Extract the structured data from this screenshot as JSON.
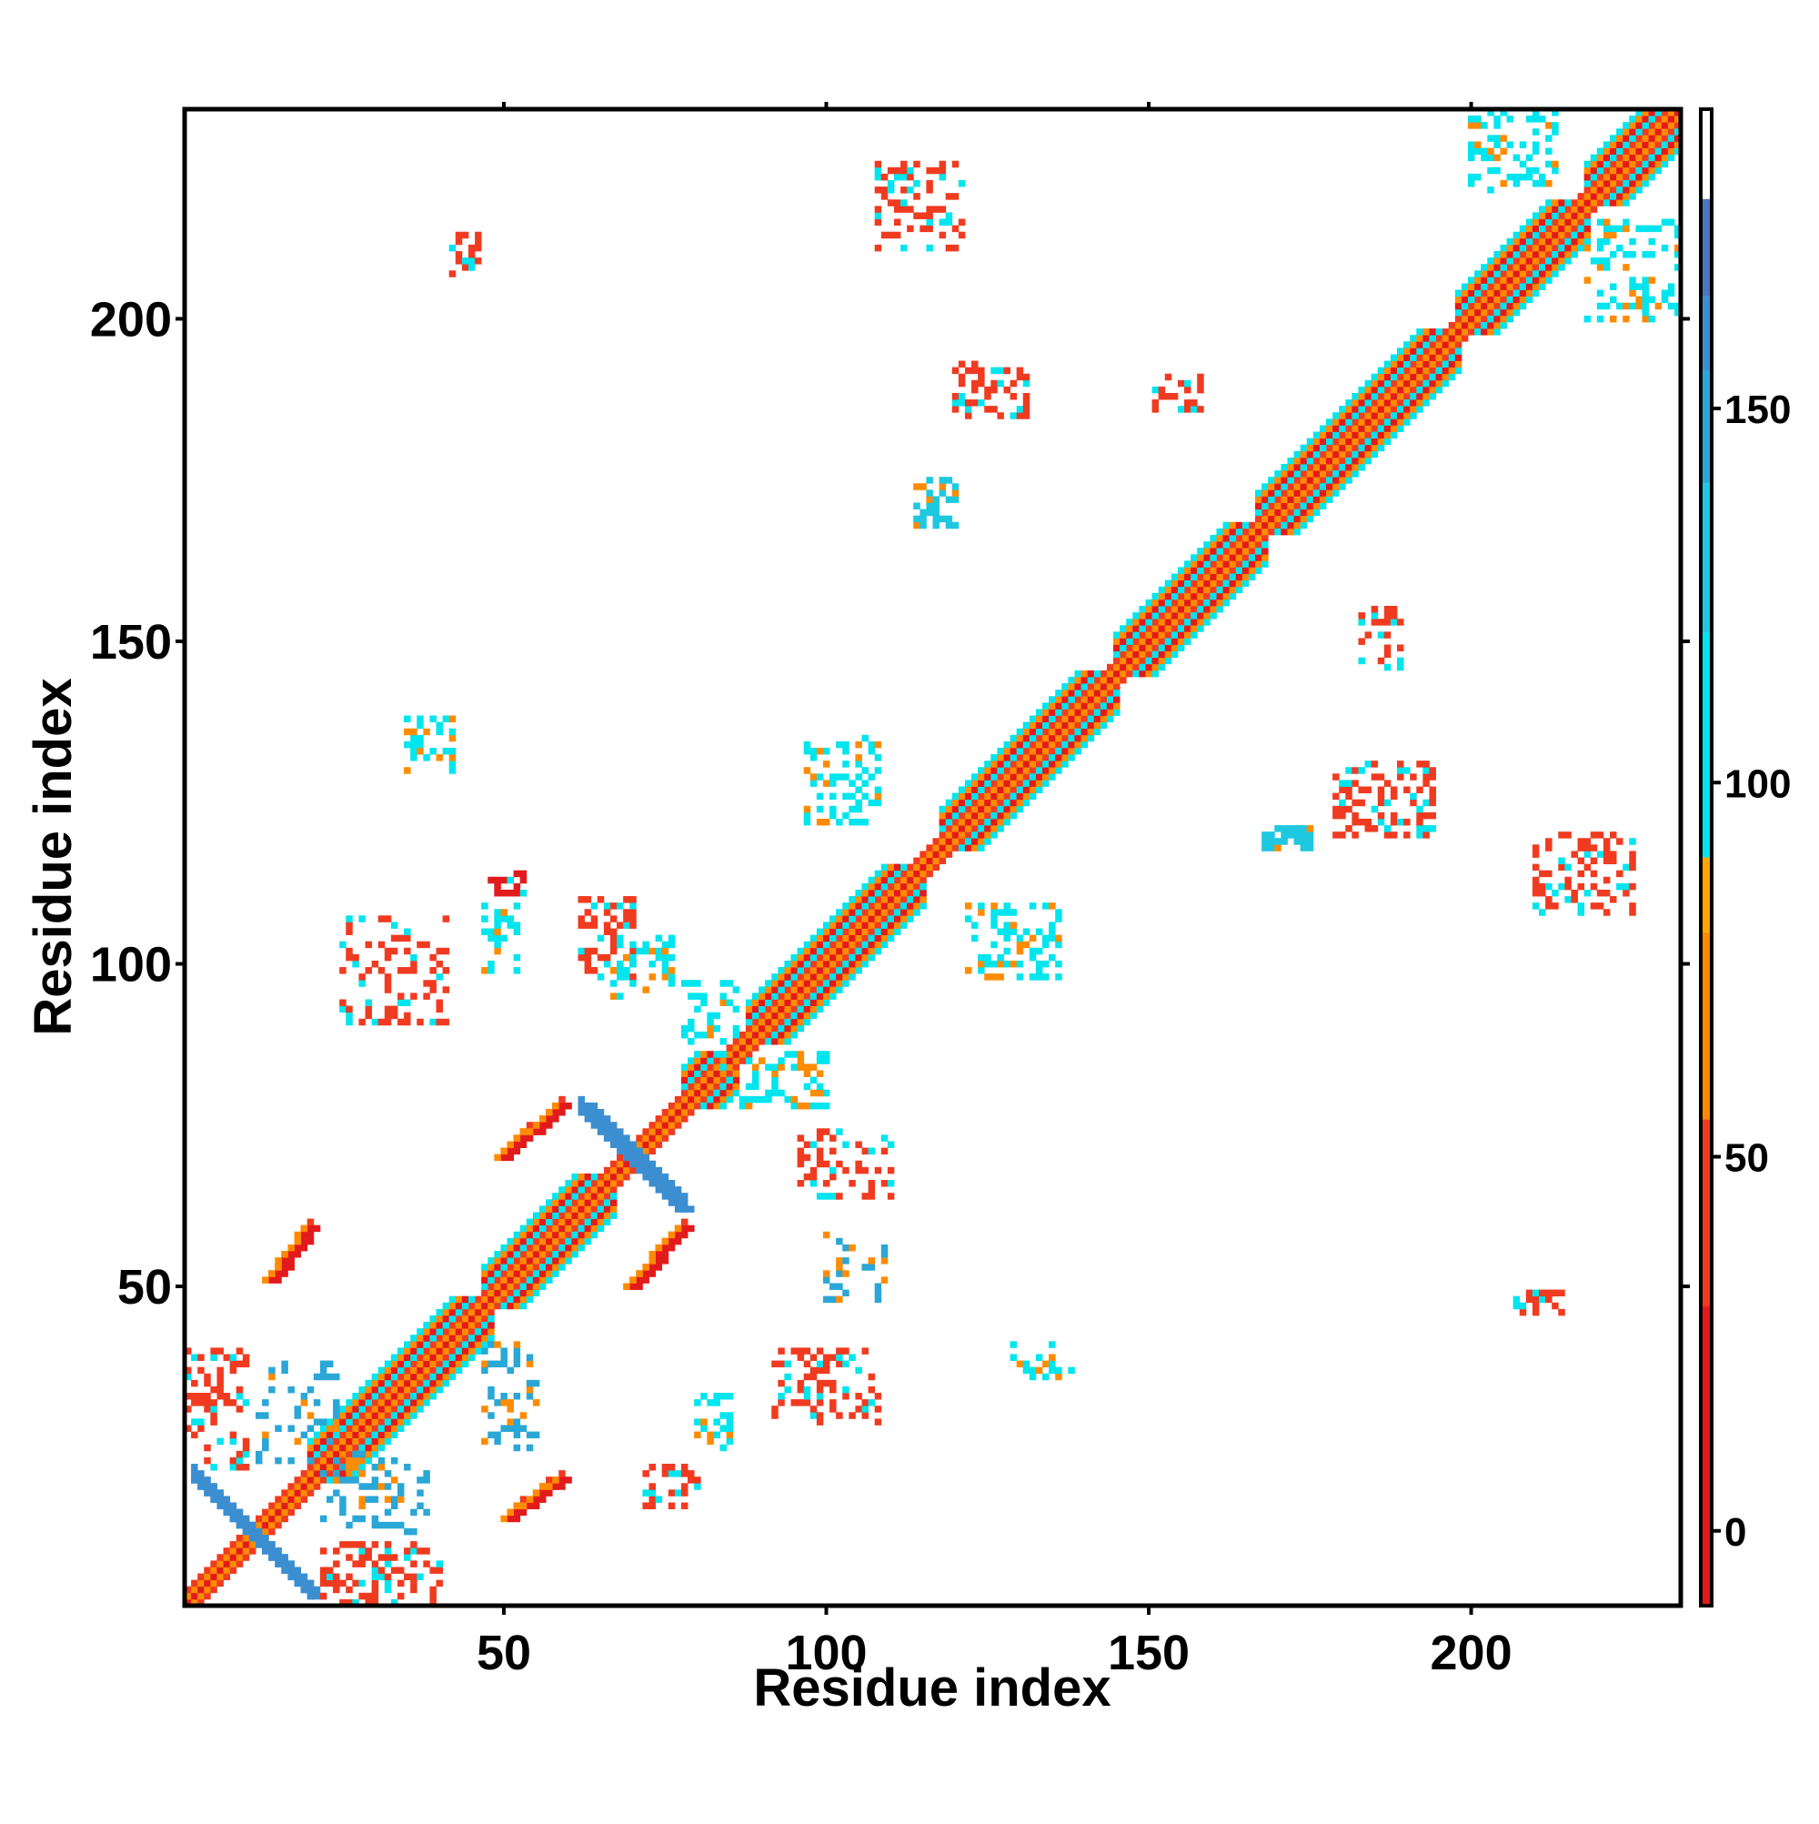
{
  "chart_data": {
    "type": "heatmap",
    "title": "",
    "xlabel": "Residue index",
    "ylabel": "Residue index",
    "xlim": [
      1,
      232
    ],
    "ylim": [
      1,
      232
    ],
    "x_ticks": [
      50,
      100,
      150,
      200
    ],
    "y_ticks": [
      50,
      100,
      150,
      200
    ],
    "x_ticks_top": [
      50,
      100,
      150,
      200
    ],
    "y_ticks_right": [
      50,
      100,
      150,
      200
    ],
    "colorbar": {
      "range": [
        -10,
        190
      ],
      "ticks": [
        0,
        50,
        100,
        150
      ],
      "bands": [
        {
          "from": -10,
          "to": 30,
          "color": "#e31a1c"
        },
        {
          "from": 30,
          "to": 55,
          "color": "#f03b20"
        },
        {
          "from": 55,
          "to": 80,
          "color": "#ff8c00"
        },
        {
          "from": 80,
          "to": 90,
          "color": "#ffa500"
        },
        {
          "from": 90,
          "to": 120,
          "color": "#00e5ee"
        },
        {
          "from": 120,
          "to": 140,
          "color": "#1ec8e0"
        },
        {
          "from": 140,
          "to": 155,
          "color": "#2aa7d6"
        },
        {
          "from": 155,
          "to": 165,
          "color": "#3b8fd0"
        },
        {
          "from": 165,
          "to": 178,
          "color": "#4a77b8"
        },
        {
          "from": 178,
          "to": 190,
          "color": "#ffffff"
        }
      ]
    },
    "value_colors": {
      "red": "#e31a1c",
      "red_orange": "#f04a1a",
      "orange": "#ff8c00",
      "cyan": "#18d8e6",
      "light_blue": "#2aaedc",
      "steel_blue": "#4f8fc8"
    },
    "diagonal": {
      "from": 1,
      "to": 232,
      "value": 0
    },
    "helix_bands": [
      {
        "from": 20,
        "to": 46
      },
      {
        "from": 47,
        "to": 65
      },
      {
        "from": 78,
        "to": 84
      },
      {
        "from": 88,
        "to": 113
      },
      {
        "from": 118,
        "to": 143
      },
      {
        "from": 145,
        "to": 166
      },
      {
        "from": 167,
        "to": 196
      },
      {
        "from": 198,
        "to": 216
      },
      {
        "from": 218,
        "to": 232
      }
    ],
    "contact_clusters": [
      {
        "x": [
          2,
          20
        ],
        "y": [
          2,
          20
        ],
        "kind": "antidiagonal",
        "value": 160,
        "width": 3
      },
      {
        "x": [
          62,
          77
        ],
        "y": [
          62,
          78
        ],
        "kind": "antidiagonal",
        "value": 160,
        "width": 3
      },
      {
        "x": [
          14,
          20
        ],
        "y": [
          51,
          59
        ],
        "kind": "parallel",
        "value": 10
      },
      {
        "x": [
          51,
          59
        ],
        "y": [
          14,
          20
        ],
        "kind": "parallel",
        "value": 10
      },
      {
        "x": [
          50,
          59
        ],
        "y": [
          70,
          78
        ],
        "kind": "parallel",
        "value": 10
      },
      {
        "x": [
          70,
          78
        ],
        "y": [
          50,
          59
        ],
        "kind": "parallel",
        "value": 10
      },
      {
        "x": [
          1,
          10
        ],
        "y": [
          22,
          40
        ],
        "kind": "scatter",
        "value": 45,
        "density": 0.35
      },
      {
        "x": [
          22,
          40
        ],
        "y": [
          1,
          10
        ],
        "kind": "scatter",
        "value": 45,
        "density": 0.35
      },
      {
        "x": [
          12,
          24
        ],
        "y": [
          22,
          38
        ],
        "kind": "scatter",
        "value": 150,
        "density": 0.25
      },
      {
        "x": [
          22,
          38
        ],
        "y": [
          12,
          24
        ],
        "kind": "scatter",
        "value": 150,
        "density": 0.25
      },
      {
        "x": [
          25,
          41
        ],
        "y": [
          91,
          107
        ],
        "kind": "scatter",
        "value": 45,
        "density": 0.3
      },
      {
        "x": [
          47,
          55
        ],
        "y": [
          25,
          41
        ],
        "kind": "scatter",
        "value": 150,
        "density": 0.3
      },
      {
        "x": [
          48,
          54
        ],
        "y": [
          111,
          114
        ],
        "kind": "scatter",
        "value": 10,
        "density": 0.5
      },
      {
        "x": [
          35,
          42
        ],
        "y": [
          130,
          138
        ],
        "kind": "scatter",
        "value": 110,
        "density": 0.4
      },
      {
        "x": [
          47,
          52
        ],
        "y": [
          99,
          109
        ],
        "kind": "scatter",
        "value": 110,
        "density": 0.3
      },
      {
        "x": [
          62,
          70
        ],
        "y": [
          98,
          110
        ],
        "kind": "scatter",
        "value": 45,
        "density": 0.4
      },
      {
        "x": [
          67,
          76
        ],
        "y": [
          95,
          104
        ],
        "kind": "scatter",
        "value": 110,
        "density": 0.35
      },
      {
        "x": [
          78,
          86
        ],
        "y": [
          88,
          97
        ],
        "kind": "scatter",
        "value": 110,
        "density": 0.4
      },
      {
        "x": [
          84,
          100
        ],
        "y": [
          78,
          86
        ],
        "kind": "scatter",
        "value": 110,
        "density": 0.3
      },
      {
        "x": [
          96,
          110
        ],
        "y": [
          64,
          74
        ],
        "kind": "scatter",
        "value": 45,
        "density": 0.3
      },
      {
        "x": [
          100,
          110
        ],
        "y": [
          48,
          58
        ],
        "kind": "scatter",
        "value": 150,
        "density": 0.25
      },
      {
        "x": [
          80,
          85
        ],
        "y": [
          25,
          33
        ],
        "kind": "scatter",
        "value": 110,
        "density": 0.4
      },
      {
        "x": [
          92,
          108
        ],
        "y": [
          29,
          40
        ],
        "kind": "scatter",
        "value": 45,
        "density": 0.3
      },
      {
        "x": [
          72,
          80
        ],
        "y": [
          16,
          22
        ],
        "kind": "scatter",
        "value": 45,
        "density": 0.3
      },
      {
        "x": [
          97,
          108
        ],
        "y": [
          122,
          135
        ],
        "kind": "scatter",
        "value": 110,
        "density": 0.35
      },
      {
        "x": [
          122,
          136
        ],
        "y": [
          98,
          109
        ],
        "kind": "scatter",
        "value": 110,
        "density": 0.35
      },
      {
        "x": [
          129,
          138
        ],
        "y": [
          36,
          41
        ],
        "kind": "scatter",
        "value": 110,
        "density": 0.4
      },
      {
        "x": [
          114,
          120
        ],
        "y": [
          168,
          175
        ],
        "kind": "scatter",
        "value": 130,
        "density": 0.6
      },
      {
        "x": [
          120,
          131
        ],
        "y": [
          185,
          193
        ],
        "kind": "scatter",
        "value": 45,
        "density": 0.45
      },
      {
        "x": [
          151,
          158
        ],
        "y": [
          186,
          191
        ],
        "kind": "scatter",
        "value": 45,
        "density": 0.35
      },
      {
        "x": [
          42,
          46
        ],
        "y": [
          207,
          213
        ],
        "kind": "scatter",
        "value": 45,
        "density": 0.6
      },
      {
        "x": [
          108,
          121
        ],
        "y": [
          211,
          224
        ],
        "kind": "scatter",
        "value": 45,
        "density": 0.35
      },
      {
        "x": [
          168,
          175
        ],
        "y": [
          118,
          121
        ],
        "kind": "scatter",
        "value": 130,
        "density": 0.7
      },
      {
        "x": [
          179,
          194
        ],
        "y": [
          120,
          131
        ],
        "kind": "scatter",
        "value": 45,
        "density": 0.4
      },
      {
        "x": [
          183,
          189
        ],
        "y": [
          146,
          155
        ],
        "kind": "scatter",
        "value": 45,
        "density": 0.35
      },
      {
        "x": [
          207,
          214
        ],
        "y": [
          46,
          49
        ],
        "kind": "scatter",
        "value": 45,
        "density": 0.5
      },
      {
        "x": [
          210,
          225
        ],
        "y": [
          108,
          120
        ],
        "kind": "scatter",
        "value": 45,
        "density": 0.35
      },
      {
        "x": [
          200,
          213
        ],
        "y": [
          220,
          232
        ],
        "kind": "scatter",
        "value": 110,
        "density": 0.3
      },
      {
        "x": [
          218,
          232
        ],
        "y": [
          200,
          215
        ],
        "kind": "scatter",
        "value": 110,
        "density": 0.3
      }
    ]
  }
}
